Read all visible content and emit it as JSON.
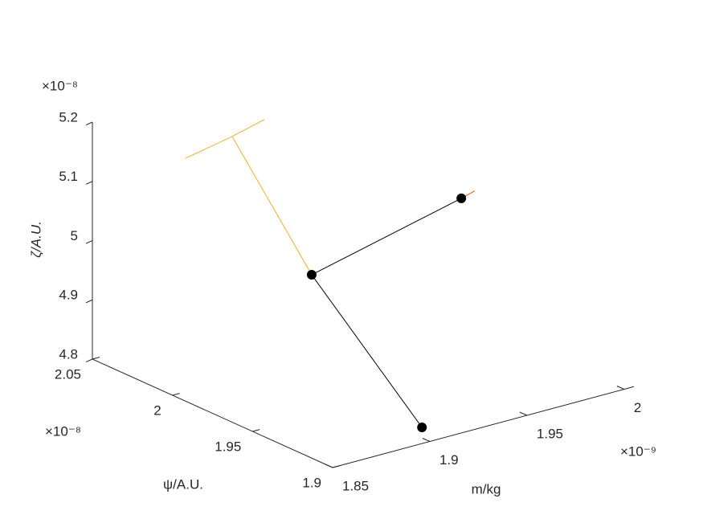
{
  "chart_data": {
    "type": "line3d",
    "xlabel": "m/kg",
    "ylabel": "ψ/A.U.",
    "zlabel": "ζ/A.U.",
    "xexponent": "×10⁻⁹",
    "yexponent": "×10⁻⁸",
    "zexponent": "×10⁻⁸",
    "xlim": [
      1.85e-09,
      2.005e-09
    ],
    "ylim": [
      1.9e-08,
      2.05e-08
    ],
    "zlim": [
      4.8e-08,
      5.2e-08
    ],
    "xticks": [
      {
        "value": 1.85e-09,
        "label": "1.85"
      },
      {
        "value": 1.9e-09,
        "label": "1.9"
      },
      {
        "value": 1.95e-09,
        "label": "1.95"
      },
      {
        "value": 2e-09,
        "label": "2"
      }
    ],
    "yticks": [
      {
        "value": 1.9e-08,
        "label": "1.9"
      },
      {
        "value": 1.95e-08,
        "label": "1.95"
      },
      {
        "value": 2e-08,
        "label": "2"
      },
      {
        "value": 2.05e-08,
        "label": "2.05"
      }
    ],
    "zticks": [
      {
        "value": 4.8e-08,
        "label": "4.8"
      },
      {
        "value": 4.9e-08,
        "label": "4.9"
      },
      {
        "value": 5e-08,
        "label": "5"
      },
      {
        "value": 5.1e-08,
        "label": "5.1"
      },
      {
        "value": 5.2e-08,
        "label": "5.2"
      }
    ],
    "series": [
      {
        "color": "#EDB120",
        "markers": false,
        "x": [
          1.888e-09,
          1.906e-09,
          1.9175e-09,
          null,
          1.906e-09,
          1.92e-09
        ],
        "y": [
          2.038e-08,
          2.0307e-08,
          1.995e-08,
          null,
          2.0307e-08,
          2.0276e-08
        ],
        "z": [
          5.12e-08,
          5.15e-08,
          4.95e-08,
          null,
          5.15e-08,
          5.17e-08
        ]
      },
      {
        "color": "#D95319",
        "markers": false,
        "x": [
          1.978e-09,
          1.9835e-09
        ],
        "y": [
          1.975e-08,
          1.9733e-08
        ],
        "z": [
          5.05e-08,
          5.06e-08
        ]
      },
      {
        "color": "#000000",
        "markers": true,
        "x": [
          1.9075e-09,
          1.9175e-09,
          1.978e-09
        ],
        "y": [
          1.914e-08,
          1.995e-08,
          1.975e-08
        ],
        "z": [
          4.8e-08,
          4.95e-08,
          5.05e-08
        ]
      }
    ]
  }
}
